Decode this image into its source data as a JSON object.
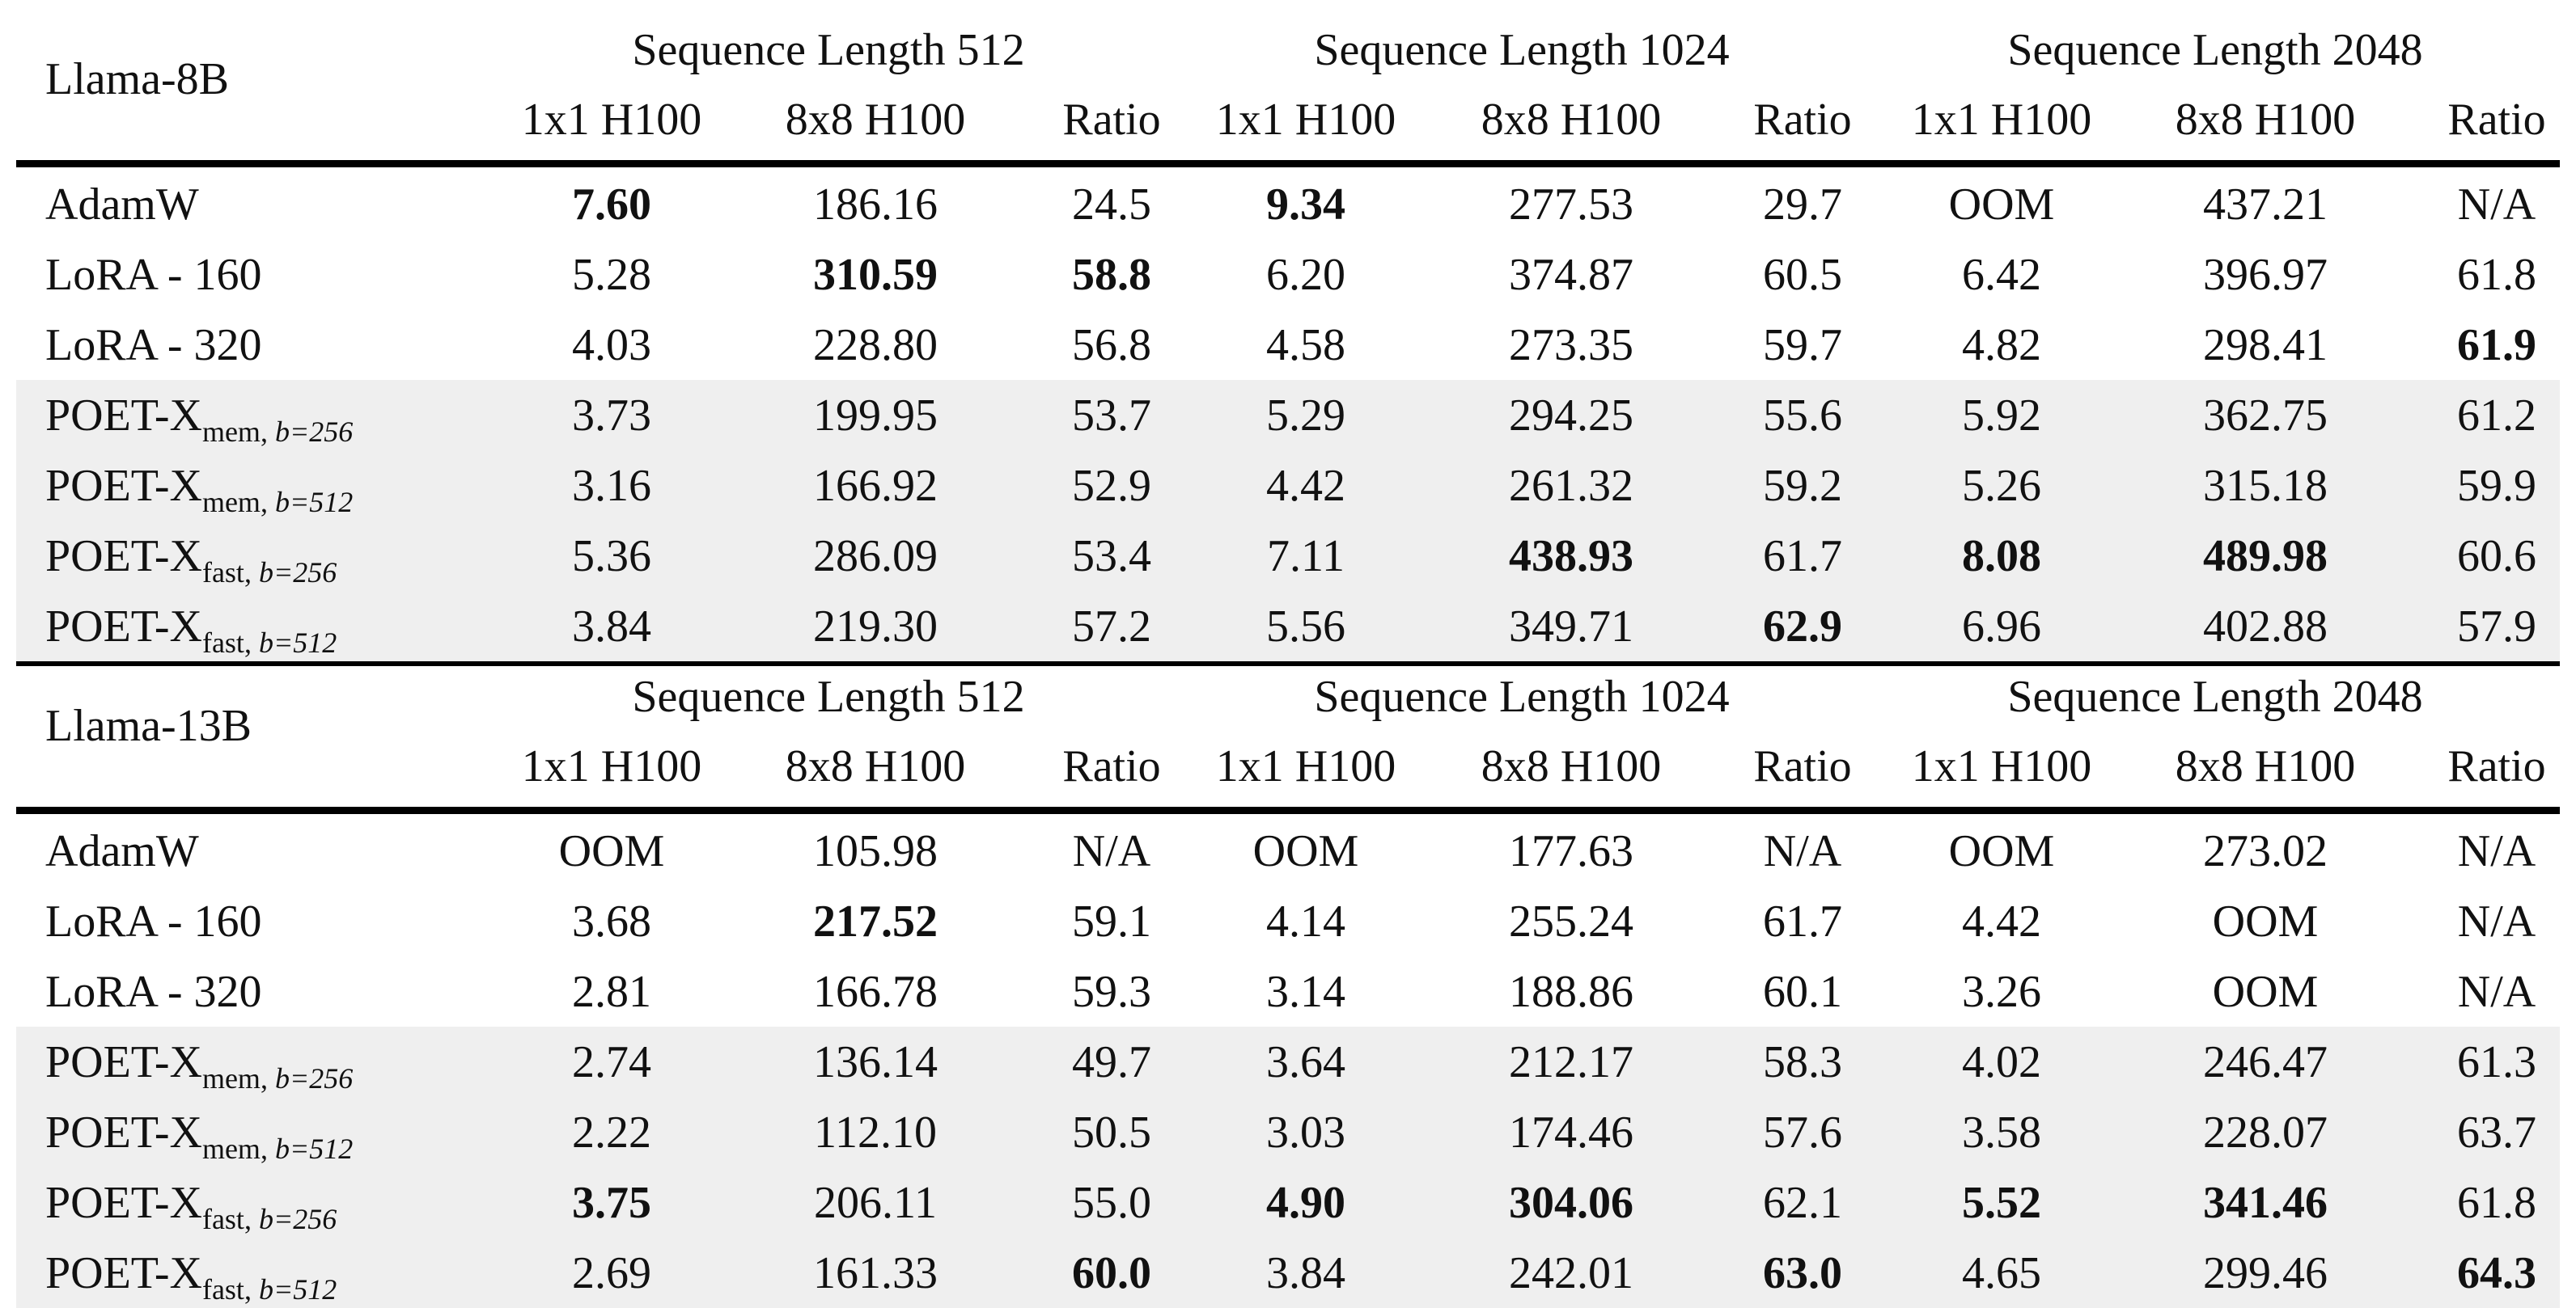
{
  "column_groups": [
    "Sequence Length 512",
    "Sequence Length 1024",
    "Sequence Length 2048"
  ],
  "column_headers": [
    "1x1 H100",
    "8x8 H100",
    "Ratio",
    "1x1 H100",
    "8x8 H100",
    "Ratio",
    "1x1 H100",
    "8x8 H100",
    "Ratio"
  ],
  "sections": [
    {
      "model": "Llama-8B",
      "rows": [
        {
          "method": "AdamW",
          "sub": "",
          "shaded": false,
          "values": [
            "7.60",
            "186.16",
            "24.5",
            "9.34",
            "277.53",
            "29.7",
            "OOM",
            "437.21",
            "N/A"
          ],
          "bold": [
            true,
            false,
            false,
            true,
            false,
            false,
            false,
            false,
            false
          ]
        },
        {
          "method": "LoRA - 160",
          "sub": "",
          "shaded": false,
          "values": [
            "5.28",
            "310.59",
            "58.8",
            "6.20",
            "374.87",
            "60.5",
            "6.42",
            "396.97",
            "61.8"
          ],
          "bold": [
            false,
            true,
            true,
            false,
            false,
            false,
            false,
            false,
            false
          ]
        },
        {
          "method": "LoRA - 320",
          "sub": "",
          "shaded": false,
          "values": [
            "4.03",
            "228.80",
            "56.8",
            "4.58",
            "273.35",
            "59.7",
            "4.82",
            "298.41",
            "61.9"
          ],
          "bold": [
            false,
            false,
            false,
            false,
            false,
            false,
            false,
            false,
            true
          ]
        },
        {
          "method": "POET-X",
          "sub": "mem",
          "b": "b=256",
          "shaded": true,
          "values": [
            "3.73",
            "199.95",
            "53.7",
            "5.29",
            "294.25",
            "55.6",
            "5.92",
            "362.75",
            "61.2"
          ],
          "bold": [
            false,
            false,
            false,
            false,
            false,
            false,
            false,
            false,
            false
          ]
        },
        {
          "method": "POET-X",
          "sub": "mem",
          "b": "b=512",
          "shaded": true,
          "values": [
            "3.16",
            "166.92",
            "52.9",
            "4.42",
            "261.32",
            "59.2",
            "5.26",
            "315.18",
            "59.9"
          ],
          "bold": [
            false,
            false,
            false,
            false,
            false,
            false,
            false,
            false,
            false
          ]
        },
        {
          "method": "POET-X",
          "sub": "fast",
          "b": "b=256",
          "shaded": true,
          "values": [
            "5.36",
            "286.09",
            "53.4",
            "7.11",
            "438.93",
            "61.7",
            "8.08",
            "489.98",
            "60.6"
          ],
          "bold": [
            false,
            false,
            false,
            false,
            true,
            false,
            true,
            true,
            false
          ]
        },
        {
          "method": "POET-X",
          "sub": "fast",
          "b": "b=512",
          "shaded": true,
          "values": [
            "3.84",
            "219.30",
            "57.2",
            "5.56",
            "349.71",
            "62.9",
            "6.96",
            "402.88",
            "57.9"
          ],
          "bold": [
            false,
            false,
            false,
            false,
            false,
            true,
            false,
            false,
            false
          ]
        }
      ]
    },
    {
      "model": "Llama-13B",
      "rows": [
        {
          "method": "AdamW",
          "sub": "",
          "shaded": false,
          "values": [
            "OOM",
            "105.98",
            "N/A",
            "OOM",
            "177.63",
            "N/A",
            "OOM",
            "273.02",
            "N/A"
          ],
          "bold": [
            false,
            false,
            false,
            false,
            false,
            false,
            false,
            false,
            false
          ]
        },
        {
          "method": "LoRA - 160",
          "sub": "",
          "shaded": false,
          "values": [
            "3.68",
            "217.52",
            "59.1",
            "4.14",
            "255.24",
            "61.7",
            "4.42",
            "OOM",
            "N/A"
          ],
          "bold": [
            false,
            true,
            false,
            false,
            false,
            false,
            false,
            false,
            false
          ]
        },
        {
          "method": "LoRA - 320",
          "sub": "",
          "shaded": false,
          "values": [
            "2.81",
            "166.78",
            "59.3",
            "3.14",
            "188.86",
            "60.1",
            "3.26",
            "OOM",
            "N/A"
          ],
          "bold": [
            false,
            false,
            false,
            false,
            false,
            false,
            false,
            false,
            false
          ]
        },
        {
          "method": "POET-X",
          "sub": "mem",
          "b": "b=256",
          "shaded": true,
          "values": [
            "2.74",
            "136.14",
            "49.7",
            "3.64",
            "212.17",
            "58.3",
            "4.02",
            "246.47",
            "61.3"
          ],
          "bold": [
            false,
            false,
            false,
            false,
            false,
            false,
            false,
            false,
            false
          ]
        },
        {
          "method": "POET-X",
          "sub": "mem",
          "b": "b=512",
          "shaded": true,
          "values": [
            "2.22",
            "112.10",
            "50.5",
            "3.03",
            "174.46",
            "57.6",
            "3.58",
            "228.07",
            "63.7"
          ],
          "bold": [
            false,
            false,
            false,
            false,
            false,
            false,
            false,
            false,
            false
          ]
        },
        {
          "method": "POET-X",
          "sub": "fast",
          "b": "b=256",
          "shaded": true,
          "values": [
            "3.75",
            "206.11",
            "55.0",
            "4.90",
            "304.06",
            "62.1",
            "5.52",
            "341.46",
            "61.8"
          ],
          "bold": [
            true,
            false,
            false,
            true,
            true,
            false,
            true,
            true,
            false
          ]
        },
        {
          "method": "POET-X",
          "sub": "fast",
          "b": "b=512",
          "shaded": true,
          "values": [
            "2.69",
            "161.33",
            "60.0",
            "3.84",
            "242.01",
            "63.0",
            "4.65",
            "299.46",
            "64.3"
          ],
          "bold": [
            false,
            false,
            true,
            false,
            false,
            true,
            false,
            false,
            true
          ]
        }
      ]
    }
  ]
}
